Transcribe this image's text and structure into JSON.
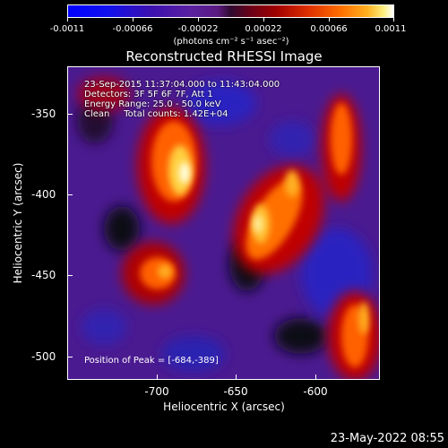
{
  "colorbar": {
    "tick_labels": [
      "-0.0011",
      "-0.00066",
      "-0.00022",
      "0.00022",
      "0.00066",
      "0.0011"
    ],
    "unit": "(photons cm⁻² s⁻¹ asec⁻²)"
  },
  "title": "Reconstructed RHESSI Image",
  "info": {
    "time": "23-Sep-2015 11:37:04.000 to 11:43:04.000",
    "detectors": "Detectors: 3F 5F 6F 7F, Att 1",
    "energy": "Energy Range: 25.0 - 50.0 keV",
    "clean": "Clean     Total counts: 1.42E+04"
  },
  "peak": "Position of Peak = [-684,-389]",
  "axes": {
    "xlabel": "Heliocentric X (arcsec)",
    "ylabel": "Heliocentric Y (arcsec)",
    "xticks": [
      "-700",
      "-650",
      "-600"
    ],
    "yticks": [
      "-350",
      "-400",
      "-450",
      "-500"
    ]
  },
  "footer_date": "23-May-2022 08:55"
}
